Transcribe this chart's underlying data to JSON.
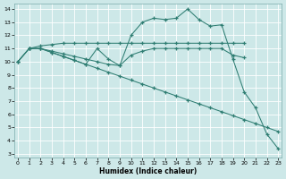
{
  "xlabel": "Humidex (Indice chaleur)",
  "bg_color": "#cde8e8",
  "grid_color": "#b8d8d8",
  "line_color": "#2e7d72",
  "xlim": [
    -0.3,
    23.3
  ],
  "ylim": [
    2.7,
    14.4
  ],
  "xticks": [
    0,
    1,
    2,
    3,
    4,
    5,
    6,
    7,
    8,
    9,
    10,
    11,
    12,
    13,
    14,
    15,
    16,
    17,
    18,
    19,
    20,
    21,
    22,
    23
  ],
  "yticks": [
    3,
    4,
    5,
    6,
    7,
    8,
    9,
    10,
    11,
    12,
    13,
    14
  ],
  "s1_x": [
    0,
    1,
    2,
    3,
    4,
    5,
    6,
    7,
    8,
    9,
    10,
    11,
    12,
    13,
    14,
    15,
    16,
    17,
    18,
    19,
    20
  ],
  "s1_y": [
    10,
    11,
    11.2,
    11.3,
    11.4,
    11.4,
    11.4,
    11.4,
    11.4,
    11.4,
    11.4,
    11.4,
    11.4,
    11.4,
    11.4,
    11.4,
    11.4,
    11.4,
    11.4,
    11.4,
    11.4
  ],
  "s2_x": [
    0,
    1,
    2,
    3,
    4,
    5,
    6,
    7,
    8,
    9,
    10,
    11,
    12,
    13,
    14,
    15,
    16,
    17,
    18,
    19,
    20
  ],
  "s2_y": [
    10,
    11,
    11,
    10.8,
    10.6,
    10.4,
    10.2,
    10.0,
    9.8,
    9.7,
    10.5,
    10.8,
    11.0,
    11.0,
    11.0,
    11.0,
    11.0,
    11.0,
    11.0,
    10.5,
    10.3
  ],
  "s3_x": [
    0,
    1,
    2,
    3,
    4,
    5,
    6,
    7,
    8,
    9,
    10,
    11,
    12,
    13,
    14,
    15,
    16,
    17,
    18,
    19,
    20,
    21,
    22,
    23
  ],
  "s3_y": [
    10,
    11,
    11,
    10.7,
    10.4,
    10.1,
    9.8,
    9.5,
    9.2,
    8.9,
    8.6,
    8.3,
    8.0,
    7.7,
    7.4,
    7.1,
    6.8,
    6.5,
    6.2,
    5.9,
    5.6,
    5.3,
    5.0,
    4.7
  ],
  "s4_x": [
    1,
    2,
    3,
    4,
    5,
    6,
    7,
    8,
    9,
    10,
    11,
    12,
    13,
    14,
    15,
    16,
    17,
    18,
    19,
    20,
    21,
    22,
    23
  ],
  "s4_y": [
    11,
    11,
    10.7,
    10.4,
    10.1,
    9.8,
    11.0,
    10.2,
    9.7,
    12.0,
    13.0,
    13.3,
    13.2,
    13.3,
    14.0,
    13.2,
    12.7,
    12.8,
    10.2,
    7.7,
    6.5,
    4.5,
    3.4
  ]
}
